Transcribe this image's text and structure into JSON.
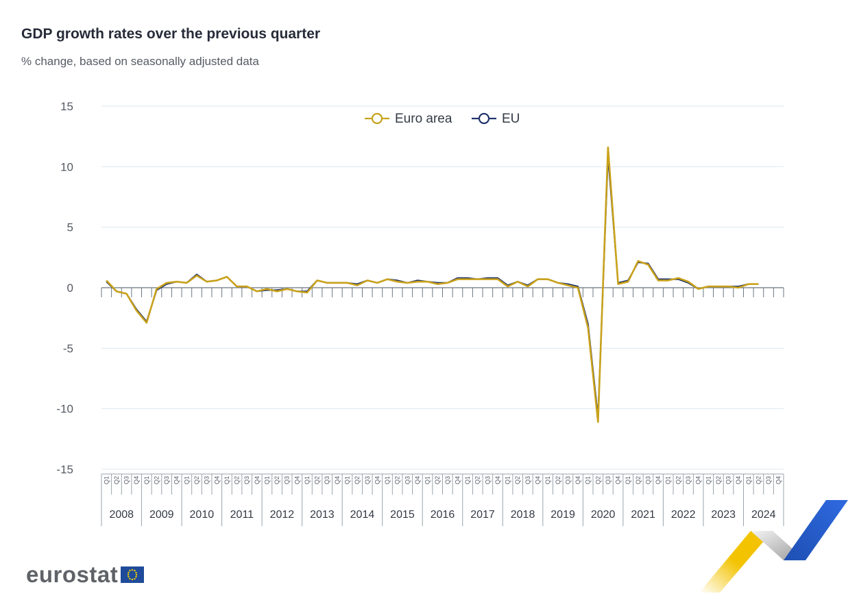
{
  "title": "GDP growth rates over the previous quarter",
  "subtitle": "% change, based on seasonally adjusted data",
  "logo": {
    "text": "eurostat",
    "icon": "eu-flag-icon"
  },
  "colors": {
    "euro_area": "#c9a21b",
    "eu": "#22336b",
    "grid": "#dde7ee",
    "axis": "#6b7580"
  },
  "chart_data": {
    "type": "line",
    "ylim": [
      -15,
      15
    ],
    "yticks": [
      15,
      10,
      5,
      0,
      -5,
      -10,
      -15
    ],
    "quarter_labels": [
      "Q1",
      "Q2",
      "Q3",
      "Q4"
    ],
    "years": [
      "2008",
      "2009",
      "2010",
      "2011",
      "2012",
      "2013",
      "2014",
      "2015",
      "2016",
      "2017",
      "2018",
      "2019",
      "2020",
      "2021",
      "2022",
      "2023",
      "2024"
    ],
    "legend_position": "top-center",
    "grid": true,
    "series": [
      {
        "name": "Euro area",
        "values": [
          0.6,
          -0.3,
          -0.5,
          -1.9,
          -2.9,
          -0.1,
          0.4,
          0.5,
          0.4,
          1.0,
          0.5,
          0.6,
          0.9,
          0.1,
          0.1,
          -0.3,
          -0.1,
          -0.3,
          -0.1,
          -0.3,
          -0.4,
          0.6,
          0.4,
          0.4,
          0.4,
          0.2,
          0.6,
          0.4,
          0.7,
          0.5,
          0.4,
          0.5,
          0.5,
          0.3,
          0.4,
          0.7,
          0.7,
          0.7,
          0.7,
          0.7,
          0.1,
          0.5,
          0.1,
          0.7,
          0.7,
          0.4,
          0.2,
          0.0,
          -3.3,
          -11.1,
          11.6,
          0.3,
          0.5,
          2.2,
          1.9,
          0.6,
          0.6,
          0.8,
          0.5,
          -0.1,
          0.1,
          0.1,
          0.1,
          0.0,
          0.3,
          0.3,
          null,
          null
        ]
      },
      {
        "name": "EU",
        "values": [
          0.5,
          -0.3,
          -0.5,
          -1.8,
          -2.8,
          -0.2,
          0.3,
          0.5,
          0.4,
          1.1,
          0.5,
          0.6,
          0.9,
          0.1,
          0.1,
          -0.3,
          -0.2,
          -0.2,
          -0.1,
          -0.3,
          -0.3,
          0.6,
          0.4,
          0.4,
          0.4,
          0.3,
          0.6,
          0.4,
          0.7,
          0.6,
          0.4,
          0.6,
          0.5,
          0.4,
          0.4,
          0.8,
          0.8,
          0.7,
          0.8,
          0.8,
          0.2,
          0.5,
          0.2,
          0.7,
          0.7,
          0.4,
          0.3,
          0.1,
          -3.0,
          -10.7,
          10.9,
          0.4,
          0.6,
          2.1,
          2.0,
          0.7,
          0.7,
          0.7,
          0.4,
          -0.1,
          0.1,
          0.1,
          0.1,
          0.1,
          0.3,
          0.3,
          null,
          null
        ]
      }
    ]
  }
}
